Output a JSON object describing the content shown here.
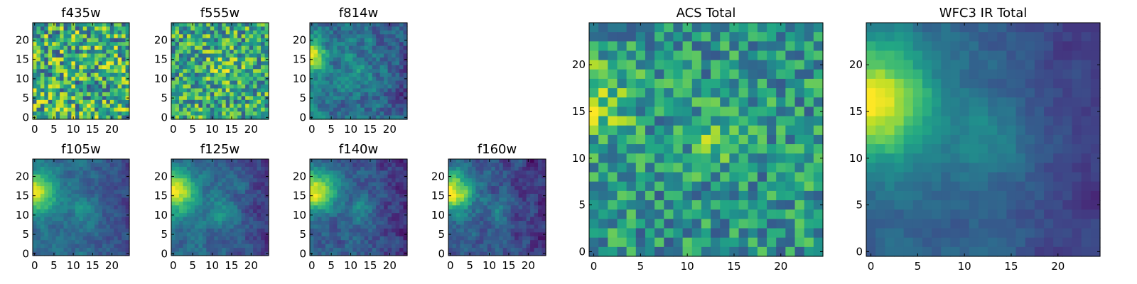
{
  "chart_data": [
    {
      "type": "heatmap",
      "title": "f435w",
      "colormap": "viridis",
      "image_size": 25,
      "x_ticks": [
        0,
        5,
        10,
        15,
        20
      ],
      "y_ticks": [
        0,
        5,
        10,
        15,
        20
      ],
      "pattern": "noise",
      "noise": 0.75,
      "base": 0.62,
      "blobs": [],
      "seed": 11
    },
    {
      "type": "heatmap",
      "title": "f555w",
      "colormap": "viridis",
      "image_size": 25,
      "x_ticks": [
        0,
        5,
        10,
        15,
        20
      ],
      "y_ticks": [
        0,
        5,
        10,
        15,
        20
      ],
      "pattern": "noise",
      "noise": 0.65,
      "base": 0.6,
      "blobs": [
        {
          "x": 12.5,
          "y": 12.5,
          "sigma": 2.5,
          "amp": 0.2
        }
      ],
      "seed": 23
    },
    {
      "type": "heatmap",
      "title": "f814w",
      "colormap": "viridis",
      "image_size": 25,
      "x_ticks": [
        0,
        5,
        10,
        15,
        20
      ],
      "y_ticks": [
        0,
        5,
        10,
        15,
        20
      ],
      "pattern": "source",
      "noise": 0.45,
      "base": 0.4,
      "blobs": [
        {
          "x": 0,
          "y": 16,
          "sigma": 2.5,
          "amp": 0.55
        },
        {
          "x": 13,
          "y": 12,
          "sigma": 2.5,
          "amp": 0.12
        }
      ],
      "seed": 37
    },
    {
      "type": "heatmap",
      "title": "f105w",
      "colormap": "viridis",
      "image_size": 25,
      "x_ticks": [
        0,
        5,
        10,
        15,
        20
      ],
      "y_ticks": [
        0,
        5,
        10,
        15,
        20
      ],
      "pattern": "source",
      "noise": 0.25,
      "base": 0.35,
      "blobs": [
        {
          "x": 0,
          "y": 16,
          "sigma": 3.8,
          "amp": 0.62
        },
        {
          "x": 13,
          "y": 11,
          "sigma": 2.5,
          "amp": 0.18
        }
      ],
      "seed": 41
    },
    {
      "type": "heatmap",
      "title": "f125w",
      "colormap": "viridis",
      "image_size": 25,
      "x_ticks": [
        0,
        5,
        10,
        15,
        20
      ],
      "y_ticks": [
        0,
        5,
        10,
        15,
        20
      ],
      "pattern": "source",
      "noise": 0.28,
      "base": 0.35,
      "blobs": [
        {
          "x": 0,
          "y": 16,
          "sigma": 3.8,
          "amp": 0.62
        },
        {
          "x": 13,
          "y": 11,
          "sigma": 2.5,
          "amp": 0.16
        }
      ],
      "seed": 53
    },
    {
      "type": "heatmap",
      "title": "f140w",
      "colormap": "viridis",
      "image_size": 25,
      "x_ticks": [
        0,
        5,
        10,
        15,
        20
      ],
      "y_ticks": [
        0,
        5,
        10,
        15,
        20
      ],
      "pattern": "source",
      "noise": 0.3,
      "base": 0.3,
      "blobs": [
        {
          "x": 0,
          "y": 16,
          "sigma": 4,
          "amp": 0.7
        },
        {
          "x": 13,
          "y": 11,
          "sigma": 2.5,
          "amp": 0.16
        }
      ],
      "seed": 67
    },
    {
      "type": "heatmap",
      "title": "f160w",
      "colormap": "viridis",
      "image_size": 25,
      "x_ticks": [
        0,
        5,
        10,
        15,
        20
      ],
      "y_ticks": [
        0,
        5,
        10,
        15,
        20
      ],
      "pattern": "source",
      "noise": 0.32,
      "base": 0.28,
      "blobs": [
        {
          "x": 0,
          "y": 16,
          "sigma": 4,
          "amp": 0.72
        },
        {
          "x": 13,
          "y": 11,
          "sigma": 2.5,
          "amp": 0.15
        }
      ],
      "seed": 79
    },
    {
      "type": "heatmap",
      "title": "ACS Total",
      "colormap": "viridis",
      "image_size": 25,
      "x_ticks": [
        0,
        5,
        10,
        15,
        20
      ],
      "y_ticks": [
        0,
        5,
        10,
        15,
        20
      ],
      "pattern": "noise",
      "noise": 0.5,
      "base": 0.52,
      "blobs": [
        {
          "x": 0,
          "y": 16,
          "sigma": 3,
          "amp": 0.28
        },
        {
          "x": 13,
          "y": 12,
          "sigma": 1.8,
          "amp": 0.25
        }
      ],
      "seed": 97
    },
    {
      "type": "heatmap",
      "title": "WFC3 IR Total",
      "colormap": "viridis",
      "image_size": 25,
      "x_ticks": [
        0,
        5,
        10,
        15,
        20
      ],
      "y_ticks": [
        0,
        5,
        10,
        15,
        20
      ],
      "pattern": "source",
      "noise": 0.16,
      "base": 0.32,
      "blobs": [
        {
          "x": 0,
          "y": 16,
          "sigma": 4.5,
          "amp": 0.68
        },
        {
          "x": 13,
          "y": 12,
          "sigma": 3,
          "amp": 0.14
        }
      ],
      "seed": 113
    }
  ]
}
